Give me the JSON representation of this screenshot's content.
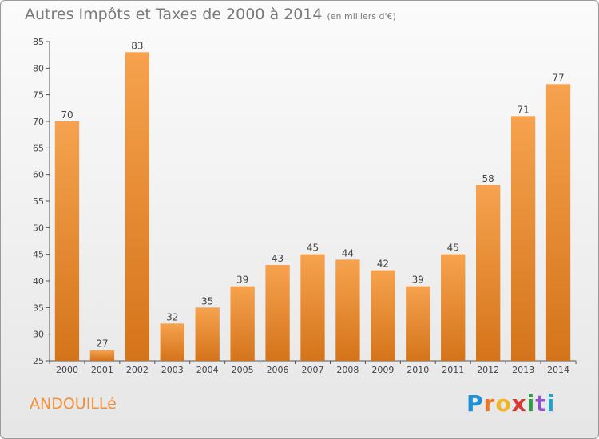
{
  "title": "Autres Impôts et Taxes de 2000 à 2014",
  "subtitle": "(en milliers d'€)",
  "commune": "ANDOUILLé",
  "brand": {
    "letters": [
      "P",
      "r",
      "o",
      "x",
      "i",
      "t",
      "i"
    ],
    "colors": [
      "#1f8fd6",
      "#e8772a",
      "#f0b429",
      "#d93636",
      "#2e9e44",
      "#8a56c2",
      "#1fa3c9"
    ]
  },
  "colors": {
    "bar_top": "#f6a24e",
    "bar_bottom": "#d4741a",
    "title": "#7a7a7a",
    "commune": "#f0903a"
  },
  "chart_data": {
    "type": "bar",
    "title": "Autres Impôts et Taxes de 2000 à 2014",
    "subtitle": "(en milliers d'€)",
    "categories": [
      "2000",
      "2001",
      "2002",
      "2003",
      "2004",
      "2005",
      "2006",
      "2007",
      "2008",
      "2009",
      "2010",
      "2011",
      "2012",
      "2013",
      "2014"
    ],
    "values": [
      70,
      27,
      83,
      32,
      35,
      39,
      43,
      45,
      44,
      42,
      39,
      45,
      58,
      71,
      77
    ],
    "ylim": [
      25,
      85
    ],
    "yticks": [
      25,
      30,
      35,
      40,
      45,
      50,
      55,
      60,
      65,
      70,
      75,
      80,
      85
    ],
    "grid": false,
    "data_labels": true
  }
}
